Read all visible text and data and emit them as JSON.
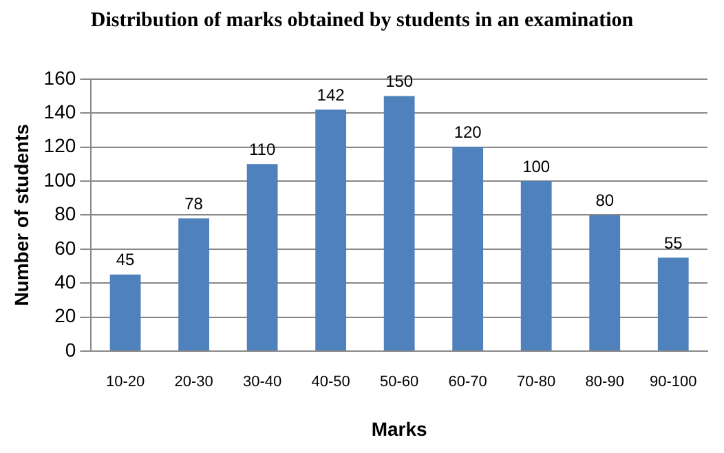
{
  "chart_data": {
    "type": "bar",
    "title": "Distribution of marks obtained by students in an examination",
    "xlabel": "Marks",
    "ylabel": "Number of students",
    "categories": [
      "10-20",
      "20-30",
      "30-40",
      "40-50",
      "50-60",
      "60-70",
      "70-80",
      "80-90",
      "90-100"
    ],
    "values": [
      45,
      78,
      110,
      142,
      150,
      120,
      100,
      80,
      55
    ],
    "color": "#4f81bd",
    "ylim": [
      0,
      160
    ],
    "yticks": [
      0,
      20,
      40,
      60,
      80,
      100,
      120,
      140,
      160
    ],
    "grid": "y",
    "data_labels": true
  }
}
